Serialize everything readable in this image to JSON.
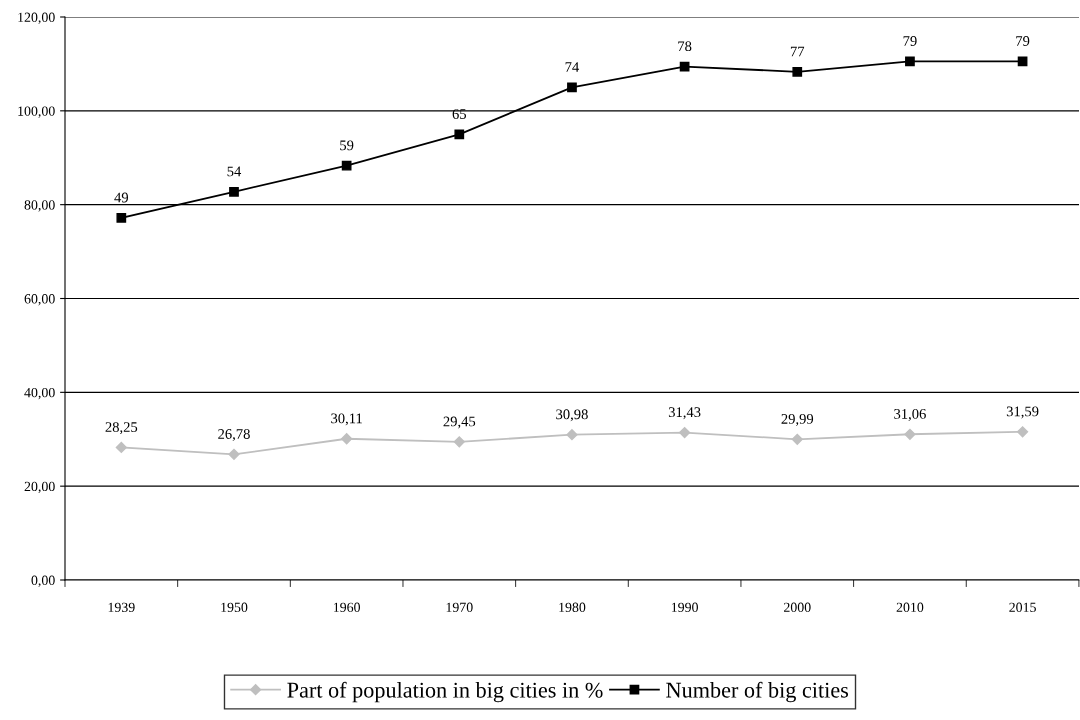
{
  "chart_data": {
    "type": "line",
    "categories": [
      "1939",
      "1950",
      "1960",
      "1970",
      "1980",
      "1990",
      "2000",
      "2010",
      "2015"
    ],
    "series": [
      {
        "name": "Part of population in big cities in %",
        "color": "#bfbfbf",
        "marker": "diamond",
        "values": [
          28.25,
          26.78,
          30.11,
          29.45,
          30.98,
          31.43,
          29.99,
          31.06,
          31.59
        ],
        "value_labels": [
          "28,25",
          "26,78",
          "30,11",
          "29,45",
          "30,98",
          "31,43",
          "29,99",
          "31,06",
          "31,59"
        ]
      },
      {
        "name": "Number of big cities",
        "color": "#000000",
        "marker": "square",
        "axis": "y2",
        "values": [
          49,
          54,
          59,
          65,
          74,
          78,
          77,
          79,
          79
        ],
        "value_labels": [
          "49",
          "54",
          "59",
          "65",
          "74",
          "78",
          "77",
          "79",
          "79"
        ]
      }
    ],
    "ylim": [
      0,
      120
    ],
    "yticks": [
      {
        "value": 0,
        "label": "0,00"
      },
      {
        "value": 20,
        "label": "20,00"
      },
      {
        "value": 40,
        "label": "40,00"
      },
      {
        "value": 60,
        "label": "60,00"
      },
      {
        "value": 80,
        "label": "80,00"
      },
      {
        "value": 100,
        "label": "100,00"
      },
      {
        "value": 120,
        "label": "120,00"
      }
    ],
    "y2lim": [
      -20.4,
      87.5
    ],
    "grid": "y",
    "legend": "bottom"
  }
}
